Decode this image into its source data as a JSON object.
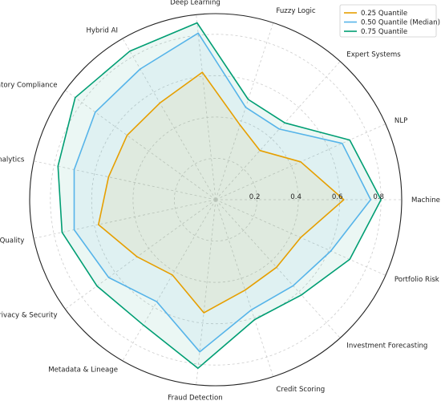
{
  "chart_data": {
    "type": "radar",
    "categories": [
      "Machine Learning",
      "NLP",
      "Expert Systems",
      "Fuzzy Logic",
      "Deep Learning",
      "Hybrid AI",
      "Regulatory Compliance",
      "Risk Analytics",
      "Data Quality",
      "Data Privacy & Security",
      "Metadata & Lineage",
      "Fraud Detection",
      "Credit Scoring",
      "Investment Forecasting",
      "Portfolio Risk Mgmt"
    ],
    "rlim": [
      0,
      0.9
    ],
    "rticks": [
      0.2,
      0.4,
      0.6,
      0.8
    ],
    "rtick_labels": [
      "0.2",
      "0.4",
      "0.6",
      "0.8"
    ],
    "grid": true,
    "legend_position": "top-right",
    "series": [
      {
        "name": "0.25 Quantile",
        "color": "#E69F00",
        "values": [
          0.62,
          0.45,
          0.32,
          0.38,
          0.62,
          0.54,
          0.53,
          0.53,
          0.58,
          0.47,
          0.42,
          0.55,
          0.46,
          0.44,
          0.45
        ]
      },
      {
        "name": "0.50 Quantile (Median)",
        "color": "#56B4E9",
        "values": [
          0.75,
          0.67,
          0.46,
          0.47,
          0.81,
          0.73,
          0.72,
          0.7,
          0.7,
          0.64,
          0.57,
          0.74,
          0.56,
          0.56,
          0.61
        ]
      },
      {
        "name": "0.75 Quantile",
        "color": "#009E73",
        "values": [
          0.8,
          0.71,
          0.5,
          0.51,
          0.86,
          0.83,
          0.84,
          0.78,
          0.76,
          0.71,
          0.7,
          0.82,
          0.61,
          0.62,
          0.71
        ]
      }
    ]
  }
}
